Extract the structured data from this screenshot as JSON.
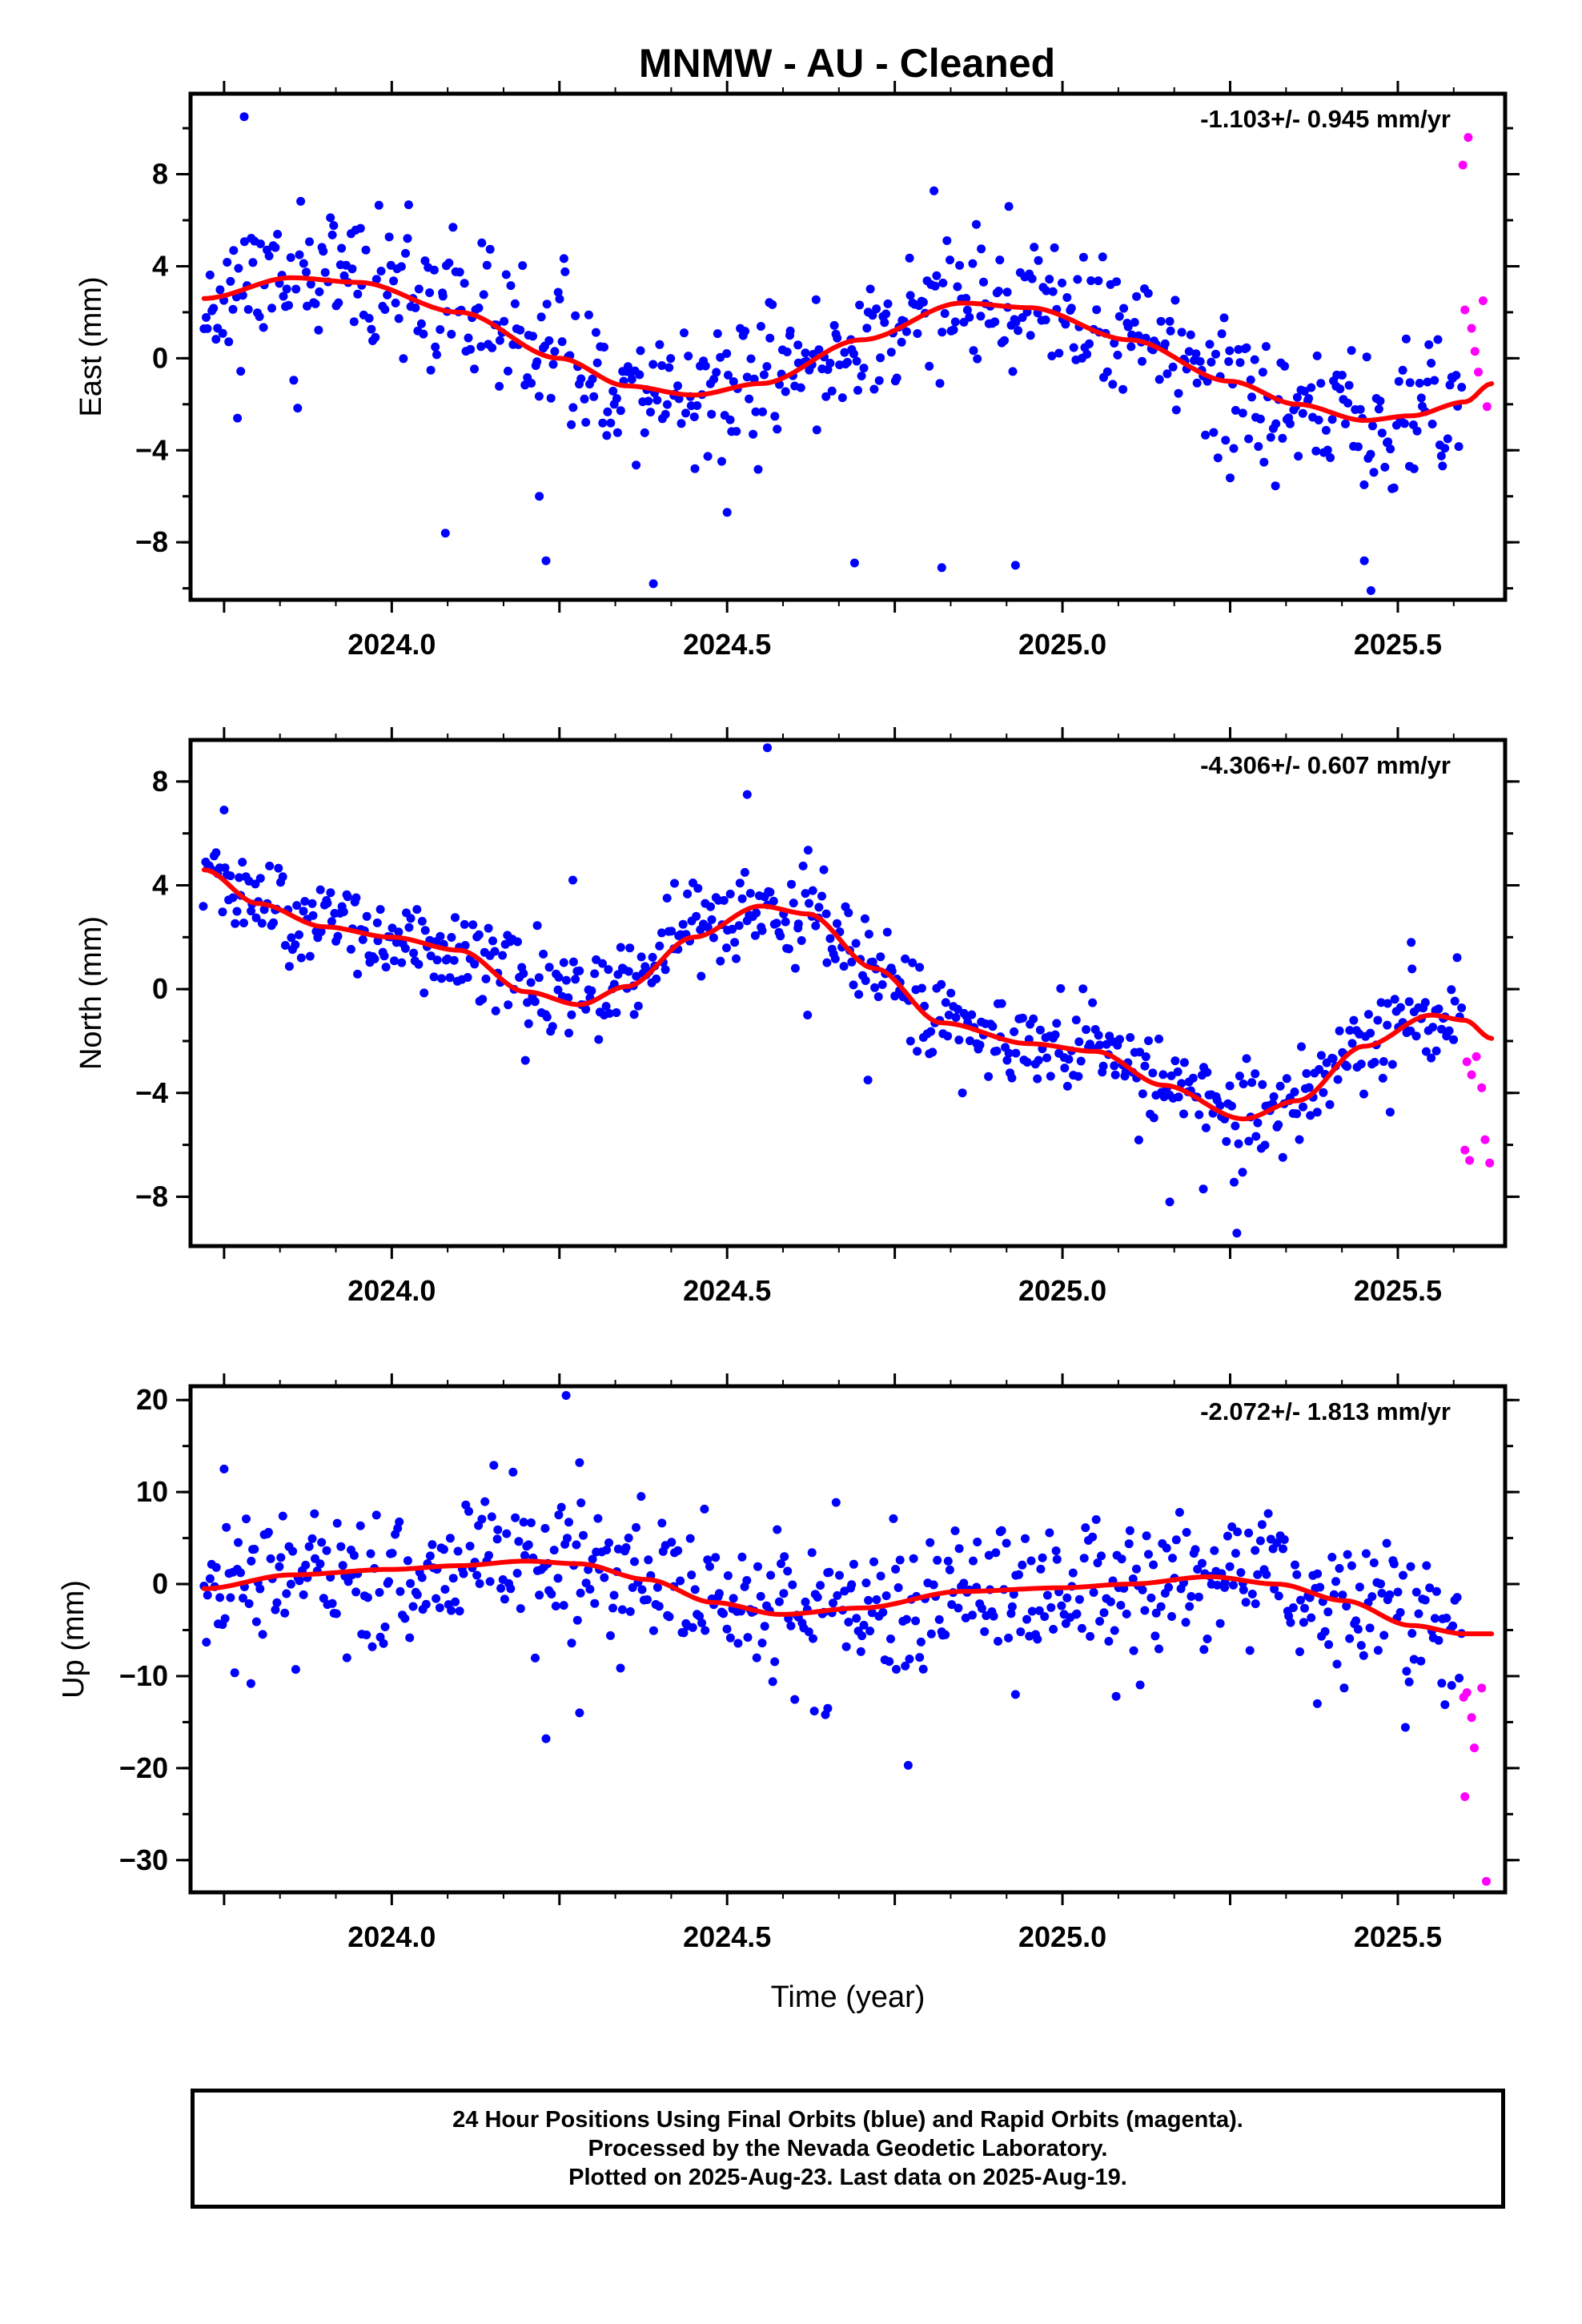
{
  "title": "MNMW  - AU - Cleaned",
  "footer": {
    "line1": "24 Hour Positions Using Final Orbits (blue) and Rapid Orbits (magenta).",
    "line2": "Processed by the Nevada Geodetic Laboratory.",
    "line3": "Plotted on 2025-Aug-23. Last data on 2025-Aug-19."
  },
  "colors": {
    "final": "#0000ff",
    "rapid": "#ff00ff",
    "model": "#ff0000",
    "frame": "#000000"
  },
  "chart_data": [
    {
      "type": "scatter",
      "ylabel": "East (mm)",
      "xlabel": "",
      "rate_label": "-1.103+/- 0.945 mm/yr",
      "xlim": [
        2023.7,
        2025.66
      ],
      "ylim": [
        -10.5,
        11.5
      ],
      "xticks": [
        2024.0,
        2024.5,
        2025.0,
        2025.5
      ],
      "xtick_labels": [
        "2024.0",
        "2024.5",
        "2025.0",
        "2025.5"
      ],
      "yticks": [
        -8,
        -4,
        0,
        4,
        8
      ],
      "ytick_labels": [
        "−8",
        "−4",
        "0",
        "4",
        "8"
      ],
      "grid": false,
      "trend_knots": [
        [
          2023.72,
          2.6
        ],
        [
          2023.85,
          3.5
        ],
        [
          2023.95,
          3.3
        ],
        [
          2024.1,
          2.0
        ],
        [
          2024.25,
          0.0
        ],
        [
          2024.35,
          -1.2
        ],
        [
          2024.45,
          -1.6
        ],
        [
          2024.55,
          -1.1
        ],
        [
          2024.7,
          0.8
        ],
        [
          2024.85,
          2.4
        ],
        [
          2024.95,
          2.2
        ],
        [
          2025.1,
          0.8
        ],
        [
          2025.25,
          -1.0
        ],
        [
          2025.35,
          -2.0
        ],
        [
          2025.45,
          -2.7
        ],
        [
          2025.52,
          -2.5
        ],
        [
          2025.6,
          -1.9
        ],
        [
          2025.64,
          -1.1
        ]
      ],
      "noise_sd": 1.5,
      "seed": 11,
      "n_final": 620,
      "x_final_end": 2025.595,
      "outliers": [
        [
          2023.78,
          10.5
        ],
        [
          2023.77,
          -2.6
        ],
        [
          2024.08,
          -7.6
        ],
        [
          2024.23,
          -8.8
        ],
        [
          2024.39,
          -9.8
        ],
        [
          2024.5,
          -6.7
        ],
        [
          2024.69,
          -8.9
        ],
        [
          2024.82,
          -9.1
        ],
        [
          2024.93,
          -9.0
        ],
        [
          2024.92,
          6.6
        ],
        [
          2025.45,
          -8.8
        ],
        [
          2025.46,
          -10.1
        ],
        [
          2024.22,
          -6.0
        ],
        [
          2025.25,
          -5.2
        ]
      ],
      "rapid": [
        [
          2025.605,
          9.6
        ],
        [
          2025.597,
          8.4
        ],
        [
          2025.6,
          2.1
        ],
        [
          2025.61,
          1.3
        ],
        [
          2025.615,
          0.3
        ],
        [
          2025.62,
          -0.6
        ],
        [
          2025.627,
          2.5
        ],
        [
          2025.633,
          -2.1
        ]
      ]
    },
    {
      "type": "scatter",
      "ylabel": "North (mm)",
      "xlabel": "",
      "rate_label": "-4.306+/- 0.607 mm/yr",
      "xlim": [
        2023.7,
        2025.66
      ],
      "ylim": [
        -9.9,
        9.6
      ],
      "xticks": [
        2024.0,
        2024.5,
        2025.0,
        2025.5
      ],
      "xtick_labels": [
        "2024.0",
        "2024.5",
        "2025.0",
        "2025.5"
      ],
      "yticks": [
        -8,
        -4,
        0,
        4,
        8
      ],
      "ytick_labels": [
        "−8",
        "−4",
        "0",
        "4",
        "8"
      ],
      "grid": false,
      "trend_knots": [
        [
          2023.72,
          4.6
        ],
        [
          2023.8,
          3.3
        ],
        [
          2023.9,
          2.4
        ],
        [
          2024.0,
          2.0
        ],
        [
          2024.1,
          1.5
        ],
        [
          2024.2,
          -0.1
        ],
        [
          2024.28,
          -0.6
        ],
        [
          2024.35,
          0.1
        ],
        [
          2024.45,
          2.0
        ],
        [
          2024.55,
          3.2
        ],
        [
          2024.62,
          2.9
        ],
        [
          2024.72,
          0.8
        ],
        [
          2024.82,
          -1.3
        ],
        [
          2024.95,
          -2.1
        ],
        [
          2025.05,
          -2.4
        ],
        [
          2025.15,
          -3.7
        ],
        [
          2025.27,
          -5.0
        ],
        [
          2025.35,
          -4.3
        ],
        [
          2025.45,
          -2.2
        ],
        [
          2025.55,
          -1.0
        ],
        [
          2025.6,
          -1.2
        ],
        [
          2025.64,
          -1.9
        ]
      ],
      "noise_sd": 0.9,
      "seed": 23,
      "n_final": 620,
      "x_final_end": 2025.595,
      "outliers": [
        [
          2023.75,
          6.9
        ],
        [
          2024.27,
          4.2
        ],
        [
          2024.53,
          7.5
        ],
        [
          2024.56,
          9.3
        ],
        [
          2025.16,
          -8.2
        ],
        [
          2025.21,
          -7.7
        ],
        [
          2025.26,
          -9.4
        ],
        [
          2025.52,
          1.8
        ],
        [
          2024.62,
          -1.0
        ],
        [
          2024.71,
          -3.5
        ]
      ],
      "rapid": [
        [
          2025.603,
          -2.8
        ],
        [
          2025.61,
          -3.3
        ],
        [
          2025.617,
          -2.6
        ],
        [
          2025.625,
          -3.8
        ],
        [
          2025.6,
          -6.2
        ],
        [
          2025.607,
          -6.6
        ],
        [
          2025.63,
          -5.8
        ],
        [
          2025.637,
          -6.7
        ]
      ]
    },
    {
      "type": "scatter",
      "ylabel": "Up (mm)",
      "xlabel": "Time (year)",
      "rate_label": "-2.072+/- 1.813 mm/yr",
      "xlim": [
        2023.7,
        2025.66
      ],
      "ylim": [
        -33.5,
        21.5
      ],
      "xticks": [
        2024.0,
        2024.5,
        2025.0,
        2025.5
      ],
      "xtick_labels": [
        "2024.0",
        "2024.5",
        "2025.0",
        "2025.5"
      ],
      "yticks": [
        -30,
        -20,
        -10,
        0,
        10,
        20
      ],
      "ytick_labels": [
        "−30",
        "−20",
        "−10",
        "0",
        "10",
        "20"
      ],
      "grid": false,
      "trend_knots": [
        [
          2023.72,
          -0.5
        ],
        [
          2023.85,
          1.0
        ],
        [
          2024.0,
          1.6
        ],
        [
          2024.1,
          2.0
        ],
        [
          2024.2,
          2.5
        ],
        [
          2024.28,
          2.2
        ],
        [
          2024.38,
          0.5
        ],
        [
          2024.48,
          -2.0
        ],
        [
          2024.58,
          -3.3
        ],
        [
          2024.7,
          -2.6
        ],
        [
          2024.85,
          -0.8
        ],
        [
          2025.0,
          -0.4
        ],
        [
          2025.1,
          0.0
        ],
        [
          2025.22,
          0.8
        ],
        [
          2025.32,
          0.0
        ],
        [
          2025.42,
          -1.8
        ],
        [
          2025.52,
          -4.5
        ],
        [
          2025.6,
          -5.4
        ],
        [
          2025.64,
          -5.4
        ]
      ],
      "noise_sd": 3.8,
      "seed": 37,
      "n_final": 620,
      "x_final_end": 2025.595,
      "outliers": [
        [
          2024.26,
          20.5
        ],
        [
          2023.75,
          12.5
        ],
        [
          2024.23,
          -16.8
        ],
        [
          2024.28,
          -14.0
        ],
        [
          2024.77,
          -19.7
        ],
        [
          2024.63,
          -13.8
        ],
        [
          2024.65,
          -13.5
        ],
        [
          2023.79,
          -10.8
        ],
        [
          2024.93,
          -12.0
        ],
        [
          2025.08,
          -12.2
        ],
        [
          2025.38,
          -13.0
        ],
        [
          2024.28,
          13.2
        ]
      ],
      "rapid": [
        [
          2025.598,
          -12.3
        ],
        [
          2025.603,
          -11.8
        ],
        [
          2025.61,
          -14.5
        ],
        [
          2025.625,
          -11.3
        ],
        [
          2025.614,
          -17.8
        ],
        [
          2025.6,
          -23.1
        ],
        [
          2025.632,
          -32.3
        ]
      ]
    }
  ]
}
